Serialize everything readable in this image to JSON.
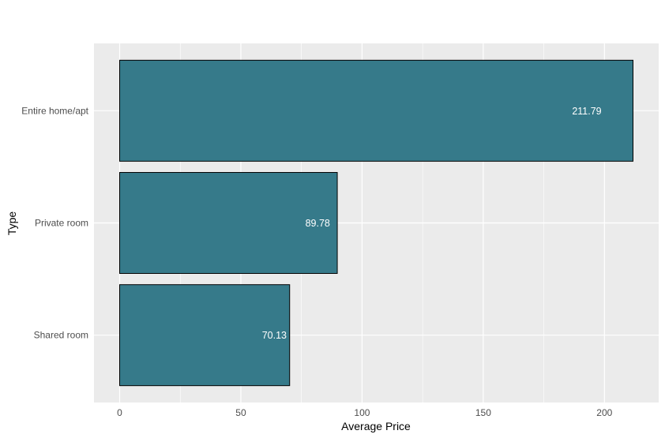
{
  "chart_data": {
    "type": "bar",
    "orientation": "horizontal",
    "categories": [
      "Entire home/apt",
      "Private room",
      "Shared room"
    ],
    "values": [
      211.79,
      89.78,
      70.13
    ],
    "data_labels": [
      "211.79",
      "89.78",
      "70.13"
    ],
    "title": "",
    "xlabel": "Average Price",
    "ylabel": "Type",
    "xlim": [
      -10.59,
      222.38
    ],
    "x_ticks": [
      0,
      50,
      100,
      150,
      200
    ],
    "x_minor_ticks": [
      25,
      75,
      125,
      175
    ],
    "grid": true,
    "legend": "none",
    "colors": {
      "bar_fill": "#367A8A",
      "bar_stroke": "#000000",
      "panel_background": "#EBEBEB",
      "grid_line": "#FFFFFF",
      "tick_label": "#4D4D4D",
      "data_label": "#FFFFFF"
    }
  }
}
